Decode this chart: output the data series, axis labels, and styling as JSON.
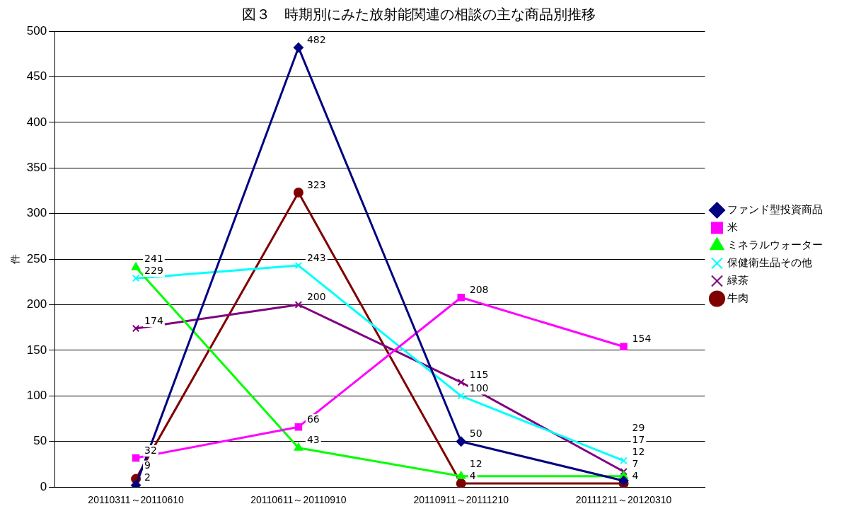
{
  "chart_data": {
    "type": "line",
    "title": "図３　時期別にみた放射能関連の相談の主な商品別推移",
    "ylabel": "件",
    "categories": [
      "20110311～20110610",
      "20110611～20110910",
      "20110911～20111210",
      "20111211～20120310"
    ],
    "series": [
      {
        "name": "ファンド型投資商品",
        "color": "#000080",
        "marker": "diamond",
        "values": [
          2,
          482,
          50,
          7
        ]
      },
      {
        "name": "米",
        "color": "#ff00ff",
        "marker": "square",
        "values": [
          32,
          66,
          208,
          154
        ]
      },
      {
        "name": "ミネラルウォーター",
        "color": "#00ff00",
        "marker": "triangle",
        "values": [
          241,
          43,
          12,
          12
        ]
      },
      {
        "name": "保健衛生品その他",
        "color": "#00ffff",
        "marker": "cross",
        "values": [
          229,
          243,
          100,
          29
        ]
      },
      {
        "name": "緑茶",
        "color": "#800080",
        "marker": "cross",
        "values": [
          174,
          200,
          115,
          17
        ]
      },
      {
        "name": "牛肉",
        "color": "#800000",
        "marker": "circle",
        "values": [
          9,
          323,
          4,
          4
        ]
      }
    ],
    "ylim": [
      0,
      500
    ],
    "yticks": [
      0,
      50,
      100,
      150,
      200,
      250,
      300,
      350,
      400,
      450,
      500
    ],
    "grid": "y",
    "legend": "right",
    "data_labels": true,
    "line_style": "solid"
  }
}
